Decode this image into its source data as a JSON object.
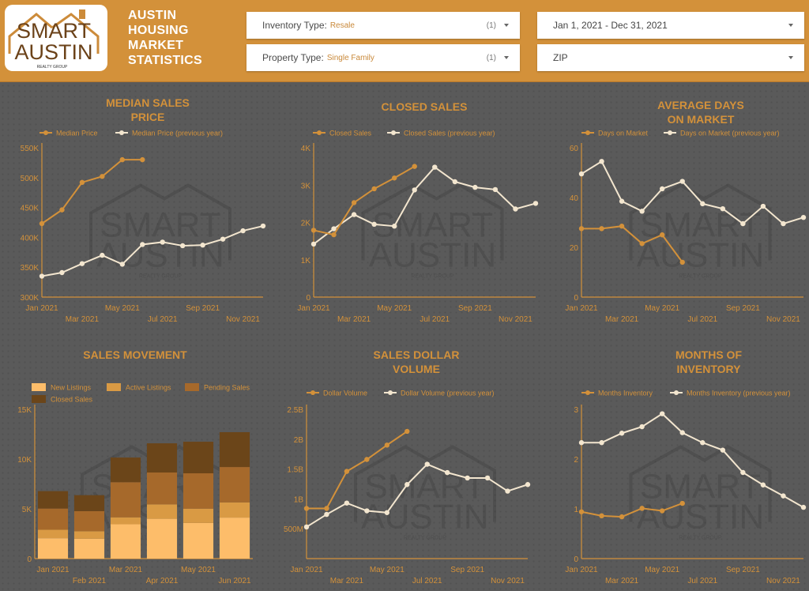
{
  "header": {
    "logo": {
      "line1": "SMART",
      "line2": "AUSTIN",
      "sub": "REALTY GROUP",
      "mark": "®"
    },
    "title_lines": [
      "AUSTIN",
      "HOUSING",
      "MARKET",
      "STATISTICS"
    ],
    "filters": {
      "inventory_type": {
        "label": "Inventory Type:",
        "value": "Resale",
        "count": "(1)"
      },
      "property_type": {
        "label": "Property Type:",
        "value": "Single Family",
        "count": "(1)"
      },
      "date_range": {
        "value": "Jan 1, 2021 - Dec 31, 2021"
      },
      "zip": {
        "value": "ZIP"
      }
    },
    "colors": {
      "brand": "#d3913a",
      "background": "#5a5a5a"
    }
  },
  "watermark": {
    "line1": "SMART",
    "line2": "AUSTIN",
    "sub": "REALTY GROUP"
  },
  "chart_data": [
    {
      "id": "median_price",
      "type": "line",
      "title_lines": [
        "MEDIAN SALES",
        "PRICE"
      ],
      "legend": [
        "Median Price",
        "Median Price (previous year)"
      ],
      "y_ticks": [
        "300K",
        "350K",
        "400K",
        "450K",
        "500K",
        "550K"
      ],
      "ylim": [
        300000,
        550000
      ],
      "x_ticks_top": [
        "Jan 2021",
        "May 2021",
        "Sep 2021"
      ],
      "x_ticks_bottom": [
        "Mar 2021",
        "Jul 2021",
        "Nov 2021"
      ],
      "series": [
        {
          "name": "Median Price",
          "color": "#d3913a",
          "values": [
            423000,
            446000,
            492000,
            502000,
            530000,
            530000
          ]
        },
        {
          "name": "Median Price (previous year)",
          "color": "#f3e6cf",
          "values": [
            335000,
            341000,
            356000,
            370000,
            355000,
            388000,
            392000,
            386000,
            387000,
            397000,
            411000,
            419000
          ]
        }
      ]
    },
    {
      "id": "closed_sales",
      "type": "line",
      "title_lines": [
        "CLOSED SALES"
      ],
      "legend": [
        "Closed Sales",
        "Closed Sales (previous year)"
      ],
      "y_ticks": [
        "0",
        "1K",
        "2K",
        "3K",
        "4K"
      ],
      "ylim": [
        0,
        4000
      ],
      "x_ticks_top": [
        "Jan 2021",
        "May 2021",
        "Sep 2021"
      ],
      "x_ticks_bottom": [
        "Mar 2021",
        "Jul 2021",
        "Nov 2021"
      ],
      "series": [
        {
          "name": "Closed Sales",
          "color": "#d3913a",
          "values": [
            1790,
            1670,
            2530,
            2900,
            3190,
            3500
          ]
        },
        {
          "name": "Closed Sales (previous year)",
          "color": "#f3e6cf",
          "values": [
            1420,
            1830,
            2210,
            1950,
            1900,
            2870,
            3480,
            3090,
            2940,
            2880,
            2360,
            2510
          ]
        }
      ]
    },
    {
      "id": "days_on_market",
      "type": "line",
      "title_lines": [
        "AVERAGE DAYS",
        "ON MARKET"
      ],
      "legend": [
        "Days on Market",
        "Days on Market (previous year)"
      ],
      "y_ticks": [
        "0",
        "20",
        "40",
        "60"
      ],
      "ylim": [
        0,
        60
      ],
      "x_ticks_top": [
        "Jan 2021",
        "May 2021",
        "Sep 2021"
      ],
      "x_ticks_bottom": [
        "Mar 2021",
        "Jul 2021",
        "Nov 2021"
      ],
      "series": [
        {
          "name": "Days on Market",
          "color": "#d3913a",
          "values": [
            27.5,
            27.5,
            28.5,
            21.5,
            25,
            14
          ]
        },
        {
          "name": "Days on Market (previous year)",
          "color": "#f3e6cf",
          "values": [
            49.5,
            54.5,
            38.5,
            34.5,
            43.5,
            46.5,
            37.5,
            35.5,
            29.5,
            36.5,
            29.5,
            32
          ]
        }
      ]
    },
    {
      "id": "sales_movement",
      "type": "bar",
      "stacked": true,
      "title_lines": [
        "SALES MOVEMENT"
      ],
      "legend": [
        "New Listings",
        "Active Listings",
        "Pending Sales",
        "Closed Sales"
      ],
      "y_ticks": [
        "0",
        "5K",
        "10K",
        "15K"
      ],
      "ylim": [
        0,
        15000
      ],
      "x_ticks_top": [
        "Jan 2021",
        "Mar 2021",
        "May 2021"
      ],
      "x_ticks_bottom": [
        "Feb 2021",
        "Apr 2021",
        "Jun 2021"
      ],
      "categories": [
        "Jan 2021",
        "Feb 2021",
        "Mar 2021",
        "Apr 2021",
        "May 2021",
        "Jun 2021"
      ],
      "series": [
        {
          "name": "New Listings",
          "color": "#fdbd6a",
          "values": [
            2050,
            2000,
            3450,
            4000,
            3580,
            4120
          ]
        },
        {
          "name": "Active Listings",
          "color": "#d99a44",
          "values": [
            850,
            750,
            700,
            1450,
            1440,
            1530
          ]
        },
        {
          "name": "Pending Sales",
          "color": "#a6692b",
          "values": [
            2130,
            2020,
            3530,
            3200,
            3550,
            3550
          ]
        },
        {
          "name": "Closed Sales",
          "color": "#6b4519",
          "values": [
            1750,
            1600,
            2470,
            2930,
            3170,
            3500
          ]
        }
      ]
    },
    {
      "id": "dollar_volume",
      "type": "line",
      "title_lines": [
        "SALES DOLLAR",
        "VOLUME"
      ],
      "legend": [
        "Dollar Volume",
        "Dollar Volume (previous year)"
      ],
      "y_ticks": [
        "500M",
        "1B",
        "1.5B",
        "2B",
        "2.5B"
      ],
      "ylim": [
        0,
        2500000000
      ],
      "x_ticks_top": [
        "Jan 2021",
        "May 2021",
        "Sep 2021"
      ],
      "x_ticks_bottom": [
        "Mar 2021",
        "Jul 2021",
        "Nov 2021"
      ],
      "series": [
        {
          "name": "Dollar Volume",
          "color": "#d3913a",
          "values": [
            840000000,
            840000000,
            1460000000,
            1660000000,
            1900000000,
            2130000000
          ]
        },
        {
          "name": "Dollar Volume (previous year)",
          "color": "#f3e6cf",
          "values": [
            530000000,
            740000000,
            930000000,
            800000000,
            770000000,
            1240000000,
            1580000000,
            1440000000,
            1350000000,
            1350000000,
            1130000000,
            1240000000
          ]
        }
      ]
    },
    {
      "id": "months_inventory",
      "type": "line",
      "title_lines": [
        "MONTHS OF",
        "INVENTORY"
      ],
      "legend": [
        "Months Inventory",
        "Months Inventory (previous year)"
      ],
      "y_ticks": [
        "0",
        "1",
        "2",
        "3"
      ],
      "ylim": [
        0,
        3
      ],
      "x_ticks_top": [
        "Jan 2021",
        "May 2021",
        "Sep 2021"
      ],
      "x_ticks_bottom": [
        "Mar 2021",
        "Jul 2021",
        "Nov 2021"
      ],
      "series": [
        {
          "name": "Months Inventory",
          "color": "#d3913a",
          "values": [
            0.94,
            0.86,
            0.84,
            1.01,
            0.96,
            1.11
          ]
        },
        {
          "name": "Months Inventory (previous year)",
          "color": "#f3e6cf",
          "values": [
            2.33,
            2.33,
            2.52,
            2.65,
            2.91,
            2.53,
            2.33,
            2.18,
            1.73,
            1.48,
            1.26,
            1.03
          ]
        }
      ]
    }
  ]
}
